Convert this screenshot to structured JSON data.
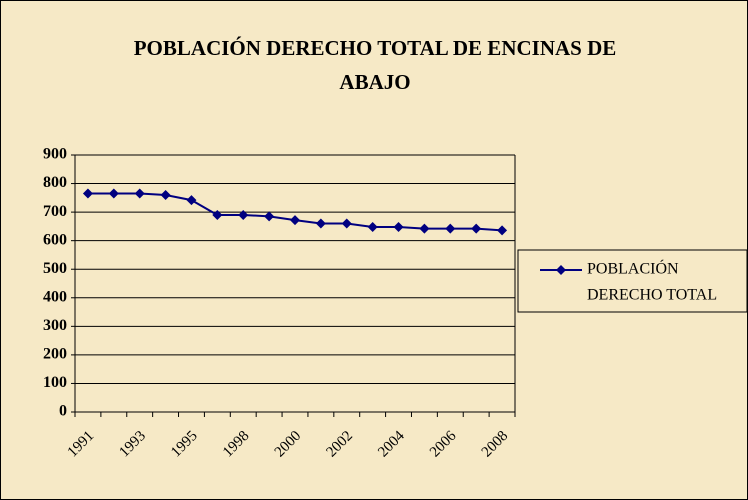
{
  "chart_data": {
    "type": "line",
    "title": [
      "POBLACIÓN DERECHO TOTAL DE ENCINAS DE",
      "ABAJO"
    ],
    "categories": [
      "1991",
      null,
      "1993",
      null,
      "1995",
      null,
      "1998",
      null,
      "2000",
      null,
      "2002",
      null,
      "2004",
      null,
      "2006",
      null,
      "2008"
    ],
    "series": [
      {
        "name": [
          "POBLACIÓN",
          "DERECHO TOTAL"
        ],
        "color": "#000080",
        "values": [
          765,
          765,
          765,
          760,
          742,
          690,
          690,
          685,
          672,
          660,
          660,
          648,
          648,
          642,
          642,
          642,
          636
        ]
      }
    ],
    "ylim": [
      0,
      900
    ],
    "yticks": [
      0,
      100,
      200,
      300,
      400,
      500,
      600,
      700,
      800,
      900
    ],
    "grid": true,
    "legend": "right"
  }
}
